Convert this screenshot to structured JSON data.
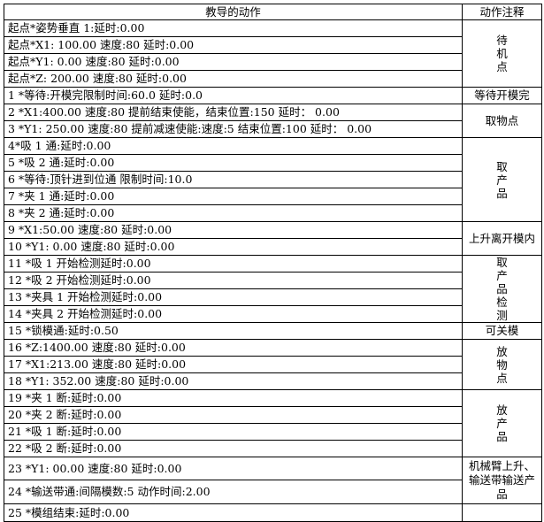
{
  "header": {
    "action": "教导的动作",
    "note": "动作注释"
  },
  "groups": [
    {
      "note": "待机点",
      "rows": [
        "起点*姿势垂直 1:延时:0.00",
        "起点*X1: 100.00 速度:80 延时:0.00",
        "起点*Y1: 0.00 速度:80 延时:0.00",
        "起点*Z: 200.00 速度:80 延时:0.00"
      ]
    },
    {
      "note": "等待开模完",
      "rows": [
        "1 *等待:开模完限制时间:60.0 延时:0.0"
      ]
    },
    {
      "note": "取物点",
      "rows": [
        "2 *X1:400.00  速度:80  提前结束使能，结束位置:150  延时： 0.00",
        "3 *Y1: 250.00 速度:80  提前减速使能:速度:5  结束位置:100  延时： 0.00"
      ]
    },
    {
      "note": "取产品",
      "rows": [
        "4*吸 1 通:延时:0.00",
        "5 *吸 2 通:延时:0.00",
        "6 *等待:顶针进到位通  限制时间:10.0",
        "7 *夹 1 通:延时:0.00",
        "8 *夹 2 通:延时:0.00"
      ]
    },
    {
      "note": "上升离开模内",
      "rows": [
        "9 *X1:50.00  速度:80 延时:0.00",
        "10 *Y1: 0.00 速度:80 延时:0.00"
      ]
    },
    {
      "note": "取产品检测",
      "rows": [
        "11 *吸 1 开始检测延时:0.00",
        "12 *吸 2 开始检测延时:0.00",
        "13 *夹具 1 开始检测延时:0.00",
        "14 *夹具 2 开始检测延时:0.00"
      ]
    },
    {
      "note": "可关模",
      "rows": [
        "15 *锁模通:延时:0.50"
      ]
    },
    {
      "note": "放物点",
      "rows": [
        "16 *Z:1400.00 速度:80 延时:0.00",
        "17 *X1:213.00 速度:80 延时:0.00",
        "18 *Y1: 352.00 速度:80 延时:0.00"
      ]
    },
    {
      "note": "放产品",
      "rows": [
        "19 *夹 1 断:延时:0.00",
        "20 *夹 2 断:延时:0.00",
        "21 *吸 1 断:延时:0.00",
        "22 *吸 2 断:延时:0.00"
      ]
    },
    {
      "note": "机械臂上升、输送带输送产品",
      "rows": [
        "23 *Y1: 00.00 速度:80 延时:0.00",
        "24 *输送带通:间隔模数:5 动作时间:2.00"
      ]
    },
    {
      "note": "",
      "rows": [
        "25 *模组结束:延时:0.00"
      ]
    }
  ]
}
